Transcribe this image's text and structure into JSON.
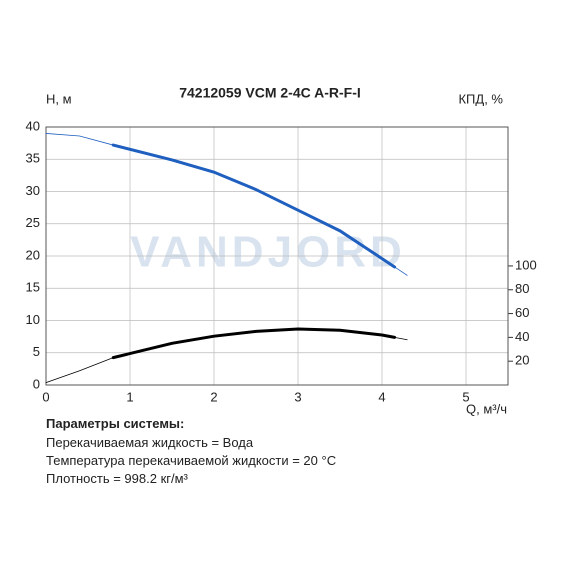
{
  "chart_data": {
    "type": "line",
    "title": "74212059 VCM 2-4C A-R-F-I",
    "ylabel": "H, м",
    "y2label": "КПД, %",
    "xlabel": "Q, м³/ч",
    "watermark": "VANDJORD",
    "x": [
      0,
      0.4,
      0.8,
      1.5,
      2,
      2.5,
      3,
      3.5,
      4,
      4.15,
      4.3
    ],
    "xlim": [
      0,
      5.5
    ],
    "xticks": [
      0,
      1,
      2,
      3,
      4,
      5
    ],
    "ylim": [
      0,
      40
    ],
    "yticks": [
      0,
      5,
      10,
      15,
      20,
      25,
      30,
      35,
      40
    ],
    "y2lim": [
      0,
      216.7
    ],
    "y2ticks": [
      20,
      40,
      60,
      80,
      100
    ],
    "grid": true,
    "series": [
      {
        "color": "#1f5fbf",
        "width": 0.8,
        "values": [
          39,
          38.6,
          37.2,
          34.9,
          33,
          30.3,
          27.1,
          23.9,
          19.6,
          18.3,
          17
        ]
      },
      {
        "color": "#1f5fbf",
        "width": 3,
        "values": [
          null,
          null,
          37.2,
          34.9,
          33,
          30.3,
          27.1,
          23.9,
          19.6,
          18.3,
          null
        ]
      },
      {
        "color": "#000000",
        "width": 0.8,
        "axis": "y2",
        "values": [
          2,
          12,
          23,
          35,
          41,
          45,
          47,
          46,
          42,
          40,
          38
        ]
      },
      {
        "color": "#000000",
        "width": 3,
        "axis": "y2",
        "values": [
          null,
          null,
          23,
          35,
          41,
          45,
          47,
          46,
          42,
          40,
          null
        ]
      }
    ]
  },
  "parameters": {
    "heading": "Параметры системы:",
    "lines": [
      "Перекачиваемая жидкость = Вода",
      "Температура перекачиваемой жидкости = 20 °C",
      "Плотность = 998.2 кг/м³"
    ]
  }
}
